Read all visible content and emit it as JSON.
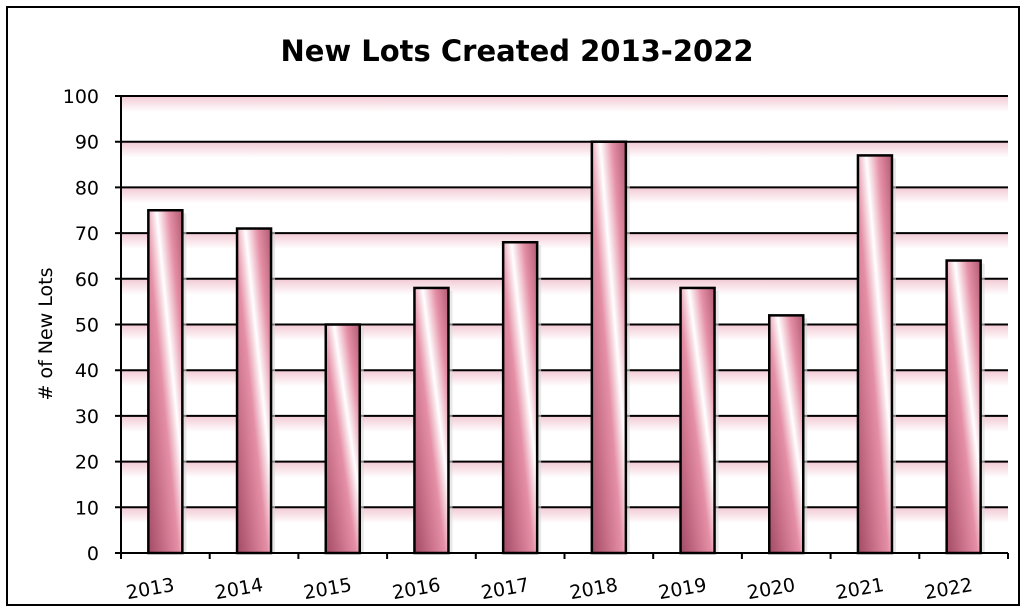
{
  "chart_data": {
    "type": "bar",
    "title": "New Lots Created 2013-2022",
    "xlabel": "",
    "ylabel": "# of New Lots",
    "categories": [
      "2013",
      "2014",
      "2015",
      "2016",
      "2017",
      "2018",
      "2019",
      "2020",
      "2021",
      "2022"
    ],
    "values": [
      75,
      71,
      50,
      58,
      68,
      90,
      58,
      52,
      87,
      64
    ],
    "ylim": [
      0,
      100
    ],
    "yticks": [
      0,
      10,
      20,
      30,
      40,
      50,
      60,
      70,
      80,
      90,
      100
    ],
    "grid": true,
    "legend": "none",
    "colors": {
      "bar": "#e58fa6",
      "bar_dark": "#a34a64",
      "bar_light": "#ffffff",
      "gridline": "#000000",
      "band": "#f7dbe3"
    }
  }
}
